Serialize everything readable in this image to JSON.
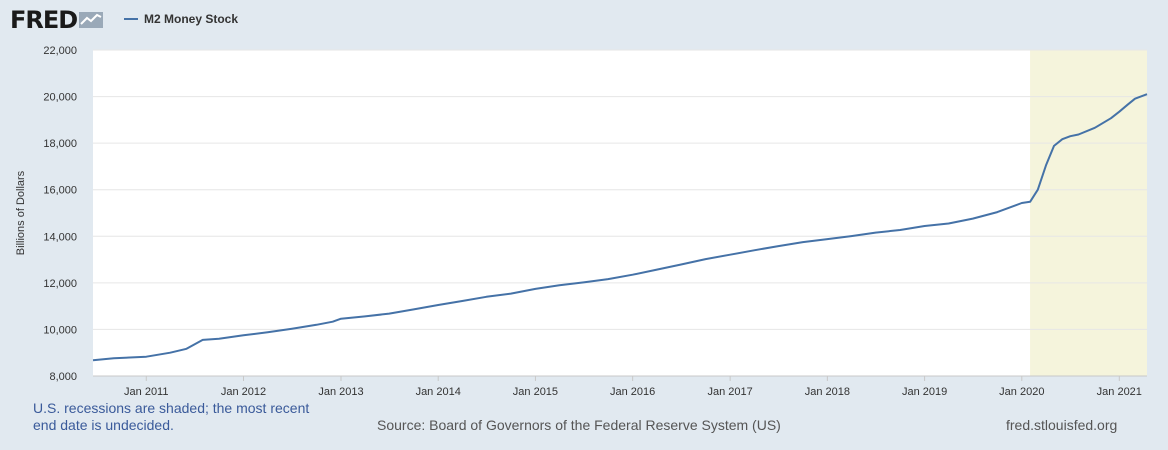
{
  "brand": {
    "logo_text": "FRED",
    "logo_icon": "fred-chart-icon"
  },
  "legend": {
    "label": "M2 Money Stock",
    "color": "#4572a7"
  },
  "footer": {
    "recession_note": "U.S. recessions are shaded; the most recent end date is undecided.",
    "source": "Source: Board of Governors of the Federal Reserve System (US)",
    "site": "fred.stlouisfed.org"
  },
  "chart_data": {
    "type": "line",
    "ylabel": "Billions of Dollars",
    "ylim": [
      8000,
      22000
    ],
    "yticks": [
      8000,
      10000,
      12000,
      14000,
      16000,
      18000,
      20000,
      22000
    ],
    "ytick_labels": [
      "8,000",
      "10,000",
      "12,000",
      "14,000",
      "16,000",
      "18,000",
      "20,000",
      "22,000"
    ],
    "xlim": [
      "2010-06-15",
      "2021-04-15"
    ],
    "xticks": [
      "2011-01-01",
      "2012-01-01",
      "2013-01-01",
      "2014-01-01",
      "2015-01-01",
      "2016-01-01",
      "2017-01-01",
      "2018-01-01",
      "2019-01-01",
      "2020-01-01",
      "2021-01-01"
    ],
    "xtick_labels": [
      "Jan 2011",
      "Jan 2012",
      "Jan 2013",
      "Jan 2014",
      "Jan 2015",
      "Jan 2016",
      "Jan 2017",
      "Jan 2018",
      "Jan 2019",
      "Jan 2020",
      "Jan 2021"
    ],
    "grid": true,
    "recession_shading": {
      "start": "2020-02-01",
      "end": "2021-04-15",
      "color": "#f5f4dc"
    },
    "series": [
      {
        "name": "M2 Money Stock",
        "color": "#4572a7",
        "points": [
          [
            "2010-06-15",
            8680
          ],
          [
            "2010-09-01",
            8760
          ],
          [
            "2011-01-01",
            8830
          ],
          [
            "2011-04-01",
            9000
          ],
          [
            "2011-06-01",
            9170
          ],
          [
            "2011-08-01",
            9550
          ],
          [
            "2011-10-01",
            9600
          ],
          [
            "2012-01-01",
            9750
          ],
          [
            "2012-04-01",
            9880
          ],
          [
            "2012-07-01",
            10030
          ],
          [
            "2012-10-01",
            10200
          ],
          [
            "2012-12-01",
            10330
          ],
          [
            "2013-01-01",
            10460
          ],
          [
            "2013-04-01",
            10560
          ],
          [
            "2013-07-01",
            10680
          ],
          [
            "2013-10-01",
            10860
          ],
          [
            "2014-01-01",
            11050
          ],
          [
            "2014-04-01",
            11220
          ],
          [
            "2014-07-01",
            11400
          ],
          [
            "2014-10-01",
            11540
          ],
          [
            "2015-01-01",
            11740
          ],
          [
            "2015-04-01",
            11900
          ],
          [
            "2015-07-01",
            12020
          ],
          [
            "2015-10-01",
            12160
          ],
          [
            "2016-01-01",
            12350
          ],
          [
            "2016-04-01",
            12570
          ],
          [
            "2016-07-01",
            12790
          ],
          [
            "2016-10-01",
            13020
          ],
          [
            "2017-01-01",
            13210
          ],
          [
            "2017-04-01",
            13400
          ],
          [
            "2017-07-01",
            13580
          ],
          [
            "2017-10-01",
            13750
          ],
          [
            "2018-01-01",
            13880
          ],
          [
            "2018-04-01",
            14010
          ],
          [
            "2018-07-01",
            14160
          ],
          [
            "2018-10-01",
            14270
          ],
          [
            "2019-01-01",
            14440
          ],
          [
            "2019-04-01",
            14550
          ],
          [
            "2019-07-01",
            14760
          ],
          [
            "2019-10-01",
            15040
          ],
          [
            "2020-01-01",
            15430
          ],
          [
            "2020-02-01",
            15480
          ],
          [
            "2020-03-01",
            16000
          ],
          [
            "2020-04-01",
            17050
          ],
          [
            "2020-05-01",
            17880
          ],
          [
            "2020-06-01",
            18170
          ],
          [
            "2020-07-01",
            18300
          ],
          [
            "2020-08-01",
            18370
          ],
          [
            "2020-10-01",
            18660
          ],
          [
            "2020-12-01",
            19070
          ],
          [
            "2021-01-01",
            19350
          ],
          [
            "2021-02-01",
            19650
          ],
          [
            "2021-03-01",
            19910
          ],
          [
            "2021-04-15",
            20100
          ]
        ]
      }
    ]
  }
}
